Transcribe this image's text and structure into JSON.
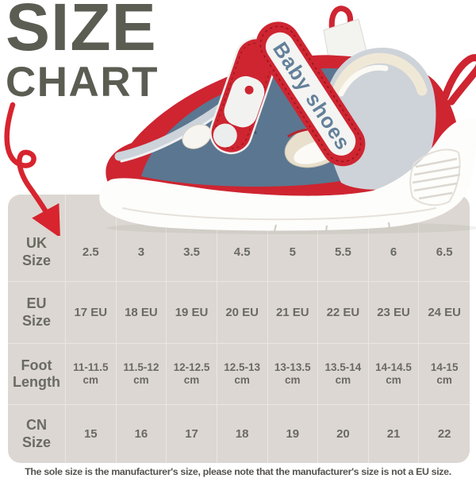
{
  "heading": {
    "line1": "SIZE",
    "line2": "CHART"
  },
  "shoe": {
    "strap_text": "Baby shoes"
  },
  "size_table": {
    "rows": [
      {
        "header": [
          "UK",
          "Size"
        ],
        "cells": [
          "2.5",
          "3",
          "3.5",
          "4.5",
          "5",
          "5.5",
          "6",
          "6.5"
        ]
      },
      {
        "header": [
          "EU",
          "Size"
        ],
        "cells": [
          "17 EU",
          "18 EU",
          "19 EU",
          "20 EU",
          "21 EU",
          "22 EU",
          "23 EU",
          "24 EU"
        ]
      },
      {
        "header": [
          "Foot",
          "Length"
        ],
        "cells": [
          [
            "11-11.5",
            "cm"
          ],
          [
            "11.5-12",
            "cm"
          ],
          [
            "12-12.5",
            "cm"
          ],
          [
            "12.5-13",
            "cm"
          ],
          [
            "13-13.5",
            "cm"
          ],
          [
            "13.5-14",
            "cm"
          ],
          [
            "14-14.5",
            "cm"
          ],
          [
            "14-15",
            "cm"
          ]
        ]
      },
      {
        "header": [
          "CN",
          "Size"
        ],
        "cells": [
          "15",
          "16",
          "17",
          "18",
          "19",
          "20",
          "21",
          "22"
        ]
      }
    ]
  },
  "footer": {
    "note": "The sole size is the manufacturer's size, please note that the manufacturer's size is not a EU size."
  },
  "colors": {
    "heading_text": "#5b5d53",
    "accent_red": "#d7242e",
    "shoe_red": "#ce2531",
    "shoe_blue": "#5b7690",
    "strap_label_blue": "#64809a",
    "table_background": "#dcd7d2",
    "table_gridline": "#eae6e2",
    "table_text": "#6a6a63",
    "footer_text": "#56544e"
  }
}
